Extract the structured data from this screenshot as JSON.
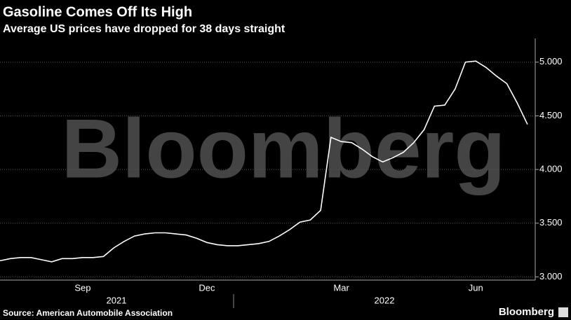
{
  "chart_data": {
    "type": "line",
    "title": "Gasoline Comes Off Its High",
    "subtitle": "Average US prices have dropped for 38 days straight",
    "categories": [
      null,
      null,
      null,
      null,
      null,
      null,
      null,
      null,
      "Sep",
      null,
      null,
      null,
      null,
      null,
      null,
      null,
      null,
      null,
      null,
      null,
      "Dec",
      null,
      null,
      null,
      null,
      null,
      null,
      null,
      null,
      null,
      null,
      null,
      null,
      "Mar",
      null,
      null,
      null,
      null,
      null,
      null,
      null,
      null,
      null,
      null,
      null,
      null,
      "Jun",
      null,
      null,
      null,
      null,
      null
    ],
    "year_labels": [
      "2021",
      "2022"
    ],
    "values": [
      3.15,
      3.17,
      3.18,
      3.18,
      3.16,
      3.14,
      3.17,
      3.17,
      3.18,
      3.18,
      3.19,
      3.27,
      3.33,
      3.38,
      3.4,
      3.41,
      3.41,
      3.4,
      3.39,
      3.36,
      3.32,
      3.3,
      3.29,
      3.29,
      3.3,
      3.31,
      3.33,
      3.38,
      3.44,
      3.51,
      3.53,
      3.62,
      4.3,
      4.26,
      4.25,
      4.19,
      4.12,
      4.07,
      4.11,
      4.16,
      4.25,
      4.37,
      4.59,
      4.6,
      4.75,
      5.0,
      5.01,
      4.95,
      4.87,
      4.8,
      4.62,
      4.42
    ],
    "color": "#ffffff",
    "ylim": [
      2.97,
      5.22
    ],
    "yticks": [
      {
        "value": 3,
        "label": "3.000"
      },
      {
        "value": 3.5,
        "label": "3.500"
      },
      {
        "value": 4,
        "label": "4.000"
      },
      {
        "value": 4.5,
        "label": "4.500"
      },
      {
        "value": 5,
        "label": "5.000"
      }
    ],
    "grid": true,
    "source": "Source: American Automobile Association",
    "watermark": "Bloomberg",
    "logo": "Bloomberg"
  }
}
